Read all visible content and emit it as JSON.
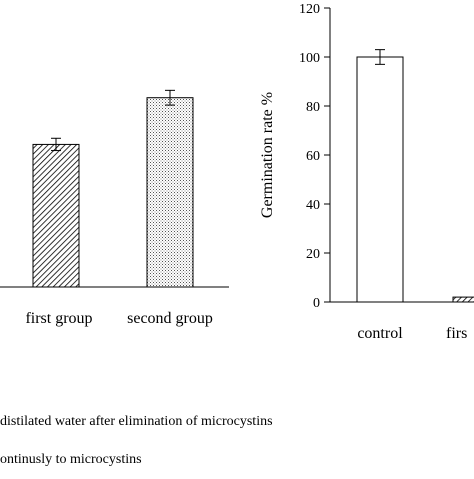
{
  "chart_data": [
    {
      "type": "bar",
      "categories": [
        "first group",
        "second group"
      ],
      "values": [
        58,
        77
      ],
      "errors": [
        2.5,
        3
      ],
      "fills": [
        "hatch-dense",
        "dotted"
      ],
      "ylim": [
        0,
        120
      ]
    },
    {
      "type": "bar",
      "ylabel": "Germination rate %",
      "categories": [
        "control",
        "firs"
      ],
      "values": [
        100,
        2
      ],
      "errors": [
        3,
        0
      ],
      "fills": [
        "white",
        "hatch-dense"
      ],
      "ylim": [
        0,
        120
      ],
      "yticks": [
        0,
        20,
        40,
        60,
        80,
        100,
        120
      ]
    }
  ],
  "notes": [
    "distilated water after elimination of microcystins",
    "ontinusly to microcystins"
  ],
  "colors": {
    "axis": "#000000",
    "bar_outline": "#000000",
    "background": "#ffffff"
  }
}
